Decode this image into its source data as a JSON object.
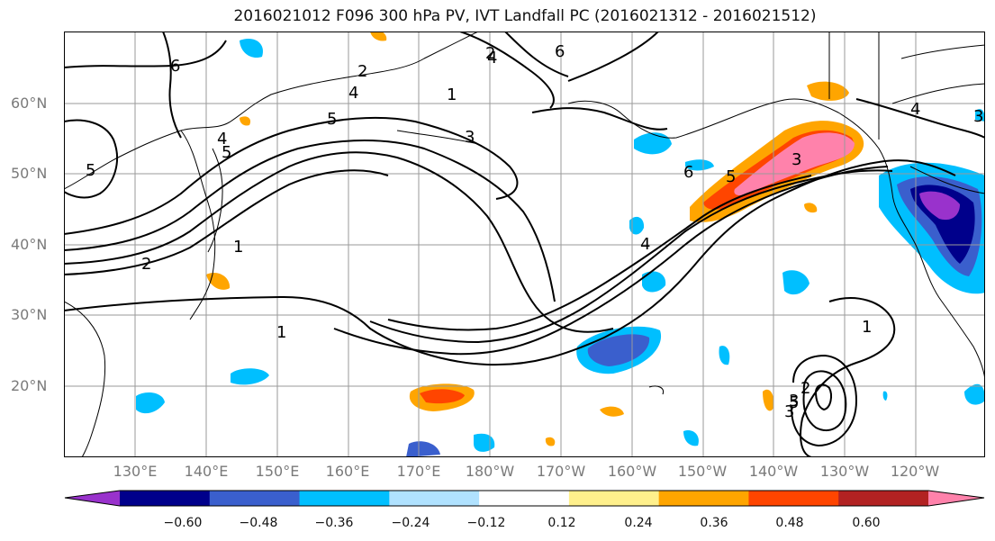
{
  "title": "2016021012 F096 300 hPa PV, IVT Landfall PC (2016021312 - 2016021512)",
  "lat_labels": [
    "60°N",
    "50°N",
    "40°N",
    "30°N",
    "20°N"
  ],
  "lon_labels": [
    "130°E",
    "140°E",
    "150°E",
    "160°E",
    "170°E",
    "180°W",
    "170°W",
    "160°W",
    "150°W",
    "140°W",
    "130°W",
    "120°W"
  ],
  "colorbar": {
    "tick_labels": [
      "−0.60",
      "−0.48",
      "−0.36",
      "−0.24",
      "−0.12",
      "0.12",
      "0.24",
      "0.36",
      "0.48",
      "0.60"
    ],
    "colors": [
      "#9932cc",
      "#00008b",
      "#3a5fcd",
      "#00bfff",
      "#b0e2ff",
      "#ffffff",
      "#fff08c",
      "#ffa500",
      "#ff4500",
      "#b22222",
      "#ff82ab"
    ]
  },
  "contour_labels": [
    "6",
    "5",
    "2",
    "1",
    "5",
    "4",
    "3",
    "2",
    "1",
    "4",
    "5",
    "6",
    "3",
    "1",
    "2",
    "1",
    "3",
    "2",
    "4",
    "3",
    "5",
    "6",
    "4",
    "5",
    "3",
    "4"
  ]
}
